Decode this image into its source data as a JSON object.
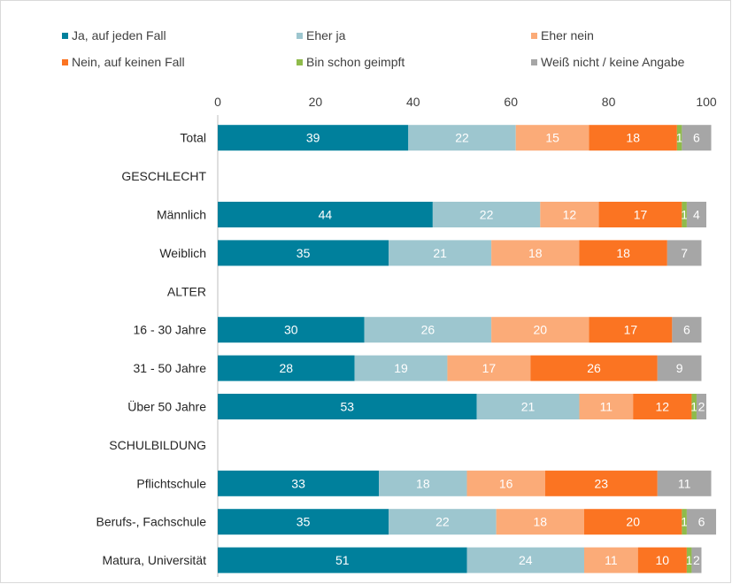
{
  "chart_data": {
    "type": "bar",
    "orientation": "horizontal-stacked",
    "xlim": [
      0,
      100
    ],
    "x_ticks": [
      "0",
      "20",
      "40",
      "60",
      "80",
      "100"
    ],
    "legend_position": "top",
    "categories": [
      "Total",
      "GESCHLECHT",
      "Männlich",
      "Weiblich",
      "ALTER",
      "16 - 30 Jahre",
      "31 - 50 Jahre",
      "Über 50 Jahre",
      "SCHULBILDUNG",
      "Pflichtschule",
      "Berufs-, Fachschule",
      "Matura, Universität"
    ],
    "series": [
      {
        "name": "Ja, auf jeden Fall",
        "color": "#00809c",
        "values": [
          39,
          null,
          44,
          35,
          null,
          30,
          28,
          53,
          null,
          33,
          35,
          51
        ]
      },
      {
        "name": "Eher ja",
        "color": "#9dc6cf",
        "values": [
          22,
          null,
          22,
          21,
          null,
          26,
          19,
          21,
          null,
          18,
          22,
          24
        ]
      },
      {
        "name": "Eher nein",
        "color": "#fbab78",
        "values": [
          15,
          null,
          12,
          18,
          null,
          20,
          17,
          11,
          null,
          16,
          18,
          11
        ]
      },
      {
        "name": "Nein, auf keinen Fall",
        "color": "#fb7422",
        "values": [
          18,
          null,
          17,
          18,
          null,
          17,
          26,
          12,
          null,
          23,
          20,
          10
        ]
      },
      {
        "name": "Bin schon geimpft",
        "color": "#8fbb4b",
        "values": [
          1,
          null,
          1,
          0,
          null,
          0,
          0,
          1,
          null,
          0,
          1,
          1
        ]
      },
      {
        "name": "Weiß nicht / keine Angabe",
        "color": "#a6a6a6",
        "values": [
          6,
          null,
          4,
          7,
          null,
          6,
          9,
          2,
          null,
          11,
          6,
          2
        ]
      }
    ]
  }
}
